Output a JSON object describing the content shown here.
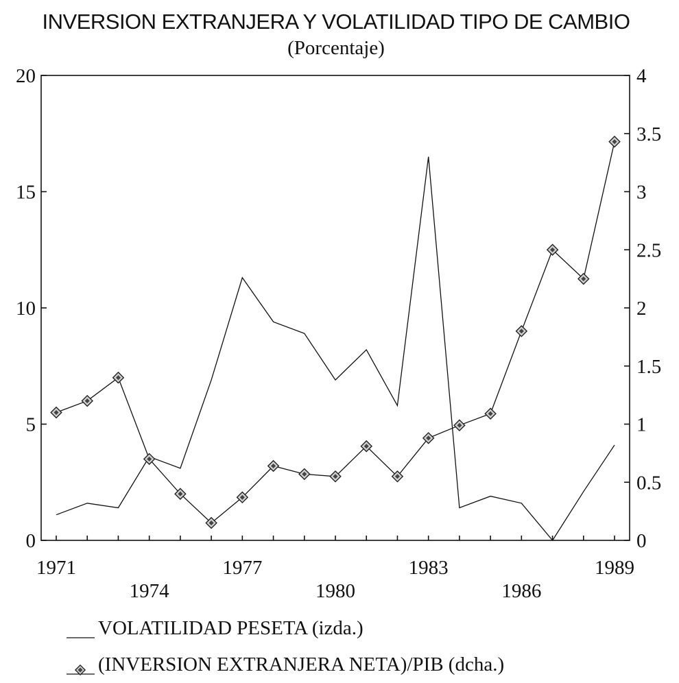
{
  "chart_data": {
    "type": "line",
    "title": "INVERSION EXTRANJERA Y VOLATILIDAD TIPO DE CAMBIO",
    "subtitle": "(Porcentaje)",
    "x": [
      1971,
      1972,
      1973,
      1974,
      1975,
      1976,
      1977,
      1978,
      1979,
      1980,
      1981,
      1982,
      1983,
      1984,
      1985,
      1986,
      1987,
      1988,
      1989
    ],
    "x_tick_labels_row1": [
      "1971",
      "1977",
      "1983",
      "1989"
    ],
    "x_tick_labels_row1_values": [
      1971,
      1977,
      1983,
      1989
    ],
    "x_tick_labels_row2": [
      "1974",
      "1980",
      "1986"
    ],
    "x_tick_labels_row2_values": [
      1974,
      1980,
      1986
    ],
    "y_left": {
      "range": [
        0,
        20
      ],
      "ticks": [
        "0",
        "5",
        "10",
        "15",
        "20"
      ],
      "tick_values": [
        0,
        5,
        10,
        15,
        20
      ]
    },
    "y_right": {
      "range": [
        0,
        4
      ],
      "ticks": [
        "0",
        "0.5",
        "1",
        "1.5",
        "2",
        "2.5",
        "3",
        "3.5",
        "4"
      ],
      "tick_values": [
        0,
        0.5,
        1,
        1.5,
        2,
        2.5,
        3,
        3.5,
        4
      ]
    },
    "series": [
      {
        "name": "VOLATILIDAD PESETA (izda.)",
        "axis": "left",
        "marker": "none",
        "values": [
          1.1,
          1.6,
          1.4,
          3.6,
          3.1,
          6.9,
          11.3,
          9.4,
          8.9,
          6.9,
          8.2,
          5.8,
          16.5,
          1.4,
          1.9,
          1.6,
          0.0,
          2.1,
          4.1
        ]
      },
      {
        "name": "(INVERSION EXTRANJERA NETA)/PIB (dcha.)",
        "axis": "right",
        "marker": "diamond",
        "values": [
          1.1,
          1.2,
          1.4,
          0.7,
          0.4,
          0.15,
          0.37,
          0.64,
          0.57,
          0.55,
          0.81,
          0.55,
          0.88,
          0.99,
          1.09,
          1.8,
          2.5,
          2.25,
          3.43
        ]
      }
    ],
    "grid": false,
    "legend_position": "bottom-left"
  },
  "colors": {
    "ink": "#111111",
    "marker_fill": "#cfcfcf"
  }
}
